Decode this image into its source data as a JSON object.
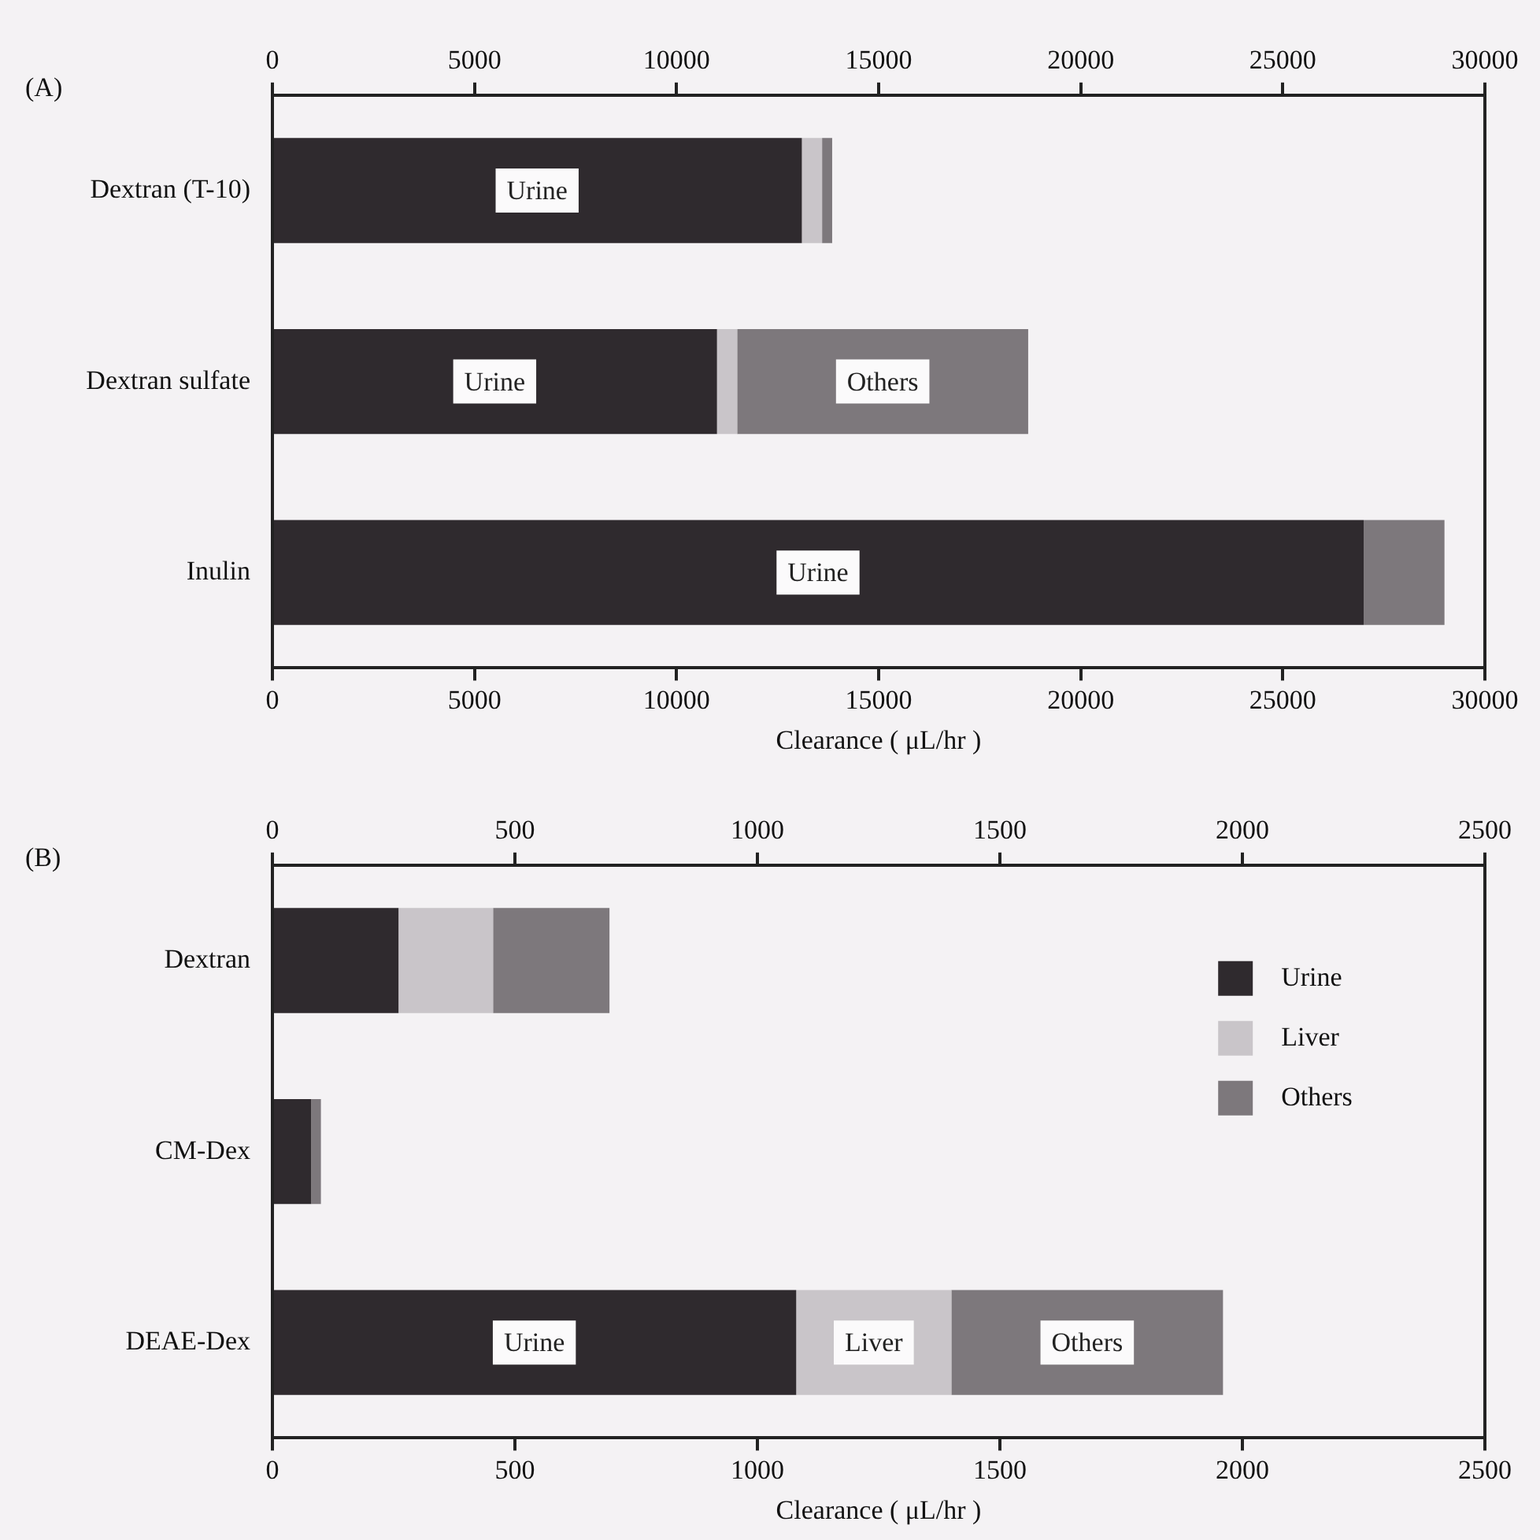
{
  "chart_data": [
    {
      "type": "bar",
      "orientation": "horizontal",
      "stacked": true,
      "title": "(A)",
      "xlabel": "Clearance ( μL/hr )",
      "categories": [
        "Dextran (T-10)",
        "Dextran sulfate",
        "Inulin"
      ],
      "series": [
        {
          "color": "#2f2a2e",
          "values": [
            13100,
            11000,
            27000
          ]
        },
        {
          "color": "#c9c5c9",
          "values": [
            500,
            500,
            null
          ]
        },
        {
          "color": "#7d787c",
          "values": [
            250,
            7200,
            2000
          ]
        }
      ],
      "xlim": [
        0,
        30000
      ],
      "xticks": [
        0,
        5000,
        10000,
        15000,
        20000,
        25000,
        30000
      ],
      "x2lim": [
        0,
        30000
      ],
      "x2ticks": [
        0,
        5000,
        10000,
        15000,
        20000,
        25000,
        30000
      ],
      "grid": false,
      "legend": false,
      "annotations": [
        "Urine",
        "Urine",
        "Others",
        "Urine"
      ]
    },
    {
      "type": "bar",
      "orientation": "horizontal",
      "stacked": true,
      "title": "(B)",
      "xlabel": "Clearance ( μL/hr )",
      "categories": [
        "Dextran",
        "CM-Dex",
        "DEAE-Dex"
      ],
      "series": [
        {
          "name": "Urine",
          "color": "#2f2a2e",
          "values": [
            260,
            80,
            1080
          ]
        },
        {
          "name": "Liver",
          "color": "#c9c5c9",
          "values": [
            195,
            null,
            320
          ]
        },
        {
          "name": "Others",
          "color": "#7d787c",
          "values": [
            240,
            20,
            560
          ]
        }
      ],
      "xlim": [
        0,
        2500
      ],
      "xticks": [
        0,
        500,
        1000,
        1500,
        2000,
        2500
      ],
      "x2lim": [
        0,
        2500
      ],
      "x2ticks": [
        0,
        500,
        1000,
        1500,
        2000,
        2500
      ],
      "grid": false,
      "legend": "right",
      "annotations": [
        "Urine",
        "Liver",
        "Others"
      ]
    }
  ]
}
